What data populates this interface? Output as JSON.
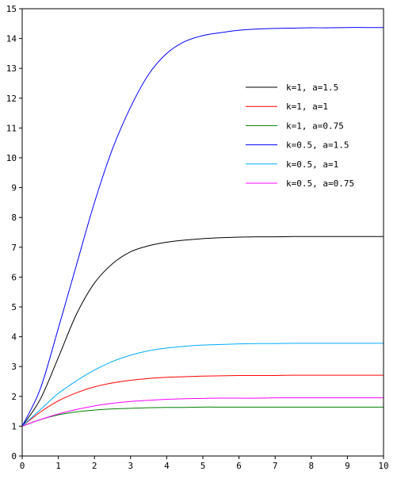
{
  "chart_data": {
    "type": "line",
    "title": "",
    "xlabel": "",
    "ylabel": "",
    "xlim": [
      0,
      10
    ],
    "ylim": [
      0,
      15
    ],
    "xticks": [
      "0",
      "1",
      "2",
      "3",
      "4",
      "5",
      "6",
      "7",
      "8",
      "9",
      "10"
    ],
    "yticks": [
      "0",
      "1",
      "2",
      "3",
      "4",
      "5",
      "6",
      "7",
      "8",
      "9",
      "10",
      "11",
      "12",
      "13",
      "14",
      "15"
    ],
    "grid": false,
    "legend_position": "upper-right",
    "x": [
      0,
      0.5,
      1,
      1.5,
      2,
      2.5,
      3,
      3.5,
      4,
      4.5,
      5,
      5.5,
      6,
      6.5,
      7,
      7.5,
      8,
      8.5,
      9,
      9.5,
      10
    ],
    "series": [
      {
        "name": "k=1, a=1.5",
        "color": "#000000",
        "values": [
          1.0,
          1.9,
          3.3,
          4.75,
          5.8,
          6.45,
          6.85,
          7.05,
          7.17,
          7.24,
          7.29,
          7.32,
          7.34,
          7.35,
          7.35,
          7.36,
          7.36,
          7.36,
          7.36,
          7.36,
          7.36
        ]
      },
      {
        "name": "k=1, a=1",
        "color": "#ff0000",
        "values": [
          1.0,
          1.47,
          1.85,
          2.12,
          2.32,
          2.45,
          2.54,
          2.6,
          2.64,
          2.66,
          2.68,
          2.69,
          2.7,
          2.7,
          2.7,
          2.71,
          2.71,
          2.71,
          2.71,
          2.71,
          2.71
        ]
      },
      {
        "name": "k=1, a=0.75",
        "color": "#008000",
        "values": [
          1.0,
          1.22,
          1.38,
          1.48,
          1.54,
          1.58,
          1.6,
          1.62,
          1.63,
          1.63,
          1.64,
          1.64,
          1.64,
          1.64,
          1.64,
          1.64,
          1.64,
          1.64,
          1.64,
          1.64,
          1.64
        ]
      },
      {
        "name": "k=0.5, a=1.5",
        "color": "#0000ff",
        "values": [
          1.0,
          2.25,
          4.28,
          6.4,
          8.5,
          10.3,
          11.7,
          12.8,
          13.5,
          13.9,
          14.1,
          14.2,
          14.28,
          14.32,
          14.34,
          14.35,
          14.36,
          14.36,
          14.37,
          14.37,
          14.37
        ]
      },
      {
        "name": "k=0.5, a=1",
        "color": "#00aaff",
        "values": [
          1.0,
          1.55,
          2.1,
          2.52,
          2.88,
          3.17,
          3.38,
          3.53,
          3.62,
          3.68,
          3.72,
          3.74,
          3.76,
          3.77,
          3.77,
          3.78,
          3.78,
          3.78,
          3.78,
          3.78,
          3.78
        ]
      },
      {
        "name": "k=0.5, a=0.75",
        "color": "#ff00ff",
        "values": [
          1.0,
          1.22,
          1.41,
          1.56,
          1.68,
          1.77,
          1.83,
          1.87,
          1.9,
          1.92,
          1.93,
          1.94,
          1.94,
          1.94,
          1.95,
          1.95,
          1.95,
          1.95,
          1.95,
          1.95,
          1.95
        ]
      }
    ]
  }
}
